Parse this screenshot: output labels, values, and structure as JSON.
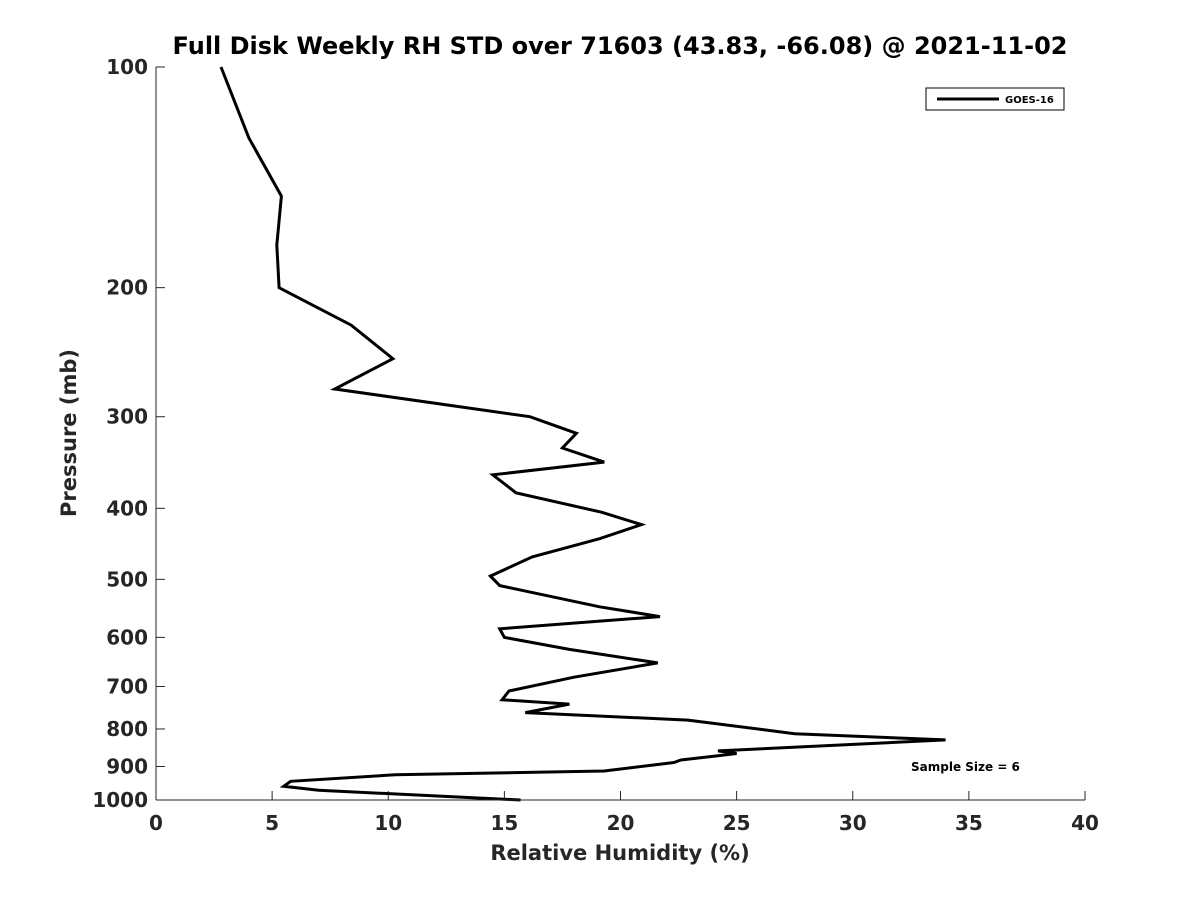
{
  "chart_data": {
    "type": "line",
    "title": "Full Disk Weekly RH STD over 71603 (43.83, -66.08) @ 2021-11-02",
    "xlabel": "Relative Humidity (%)",
    "ylabel": "Pressure (mb)",
    "xlim": [
      0,
      40
    ],
    "ylim": [
      100,
      1000
    ],
    "y_scale": "log",
    "y_inverted": true,
    "x_ticks": [
      0,
      5,
      10,
      15,
      20,
      25,
      30,
      35,
      40
    ],
    "y_ticks": [
      100,
      200,
      300,
      400,
      500,
      600,
      700,
      800,
      900,
      1000
    ],
    "grid": false,
    "legend_position": "top-right",
    "series": [
      {
        "name": "GOES-16",
        "color": "#000000",
        "x": [
          2.8,
          4.0,
          5.4,
          5.2,
          5.3,
          8.4,
          10.2,
          7.7,
          16.1,
          18.1,
          17.5,
          19.3,
          14.5,
          15.5,
          19.2,
          20.9,
          19.1,
          16.2,
          14.4,
          14.8,
          19.1,
          21.7,
          14.8,
          15.0,
          17.8,
          21.6,
          18.0,
          15.2,
          14.9,
          17.8,
          15.9,
          22.9,
          27.5,
          34.0,
          24.2,
          25.0,
          24.2,
          22.6,
          22.3,
          19.3,
          10.3,
          5.8,
          5.5,
          7.0,
          15.7
        ],
        "y": [
          100,
          125,
          150,
          175,
          200,
          225,
          250,
          275,
          300,
          316,
          331,
          346,
          360,
          381,
          405,
          421,
          440,
          466,
          495,
          510,
          545,
          562,
          584,
          600,
          623,
          650,
          680,
          710,
          730,
          740,
          760,
          778,
          812,
          828,
          857,
          864,
          870,
          882,
          889,
          913,
          924,
          943,
          958,
          970,
          1000
        ]
      }
    ],
    "annotation": "Sample Size = 6"
  }
}
